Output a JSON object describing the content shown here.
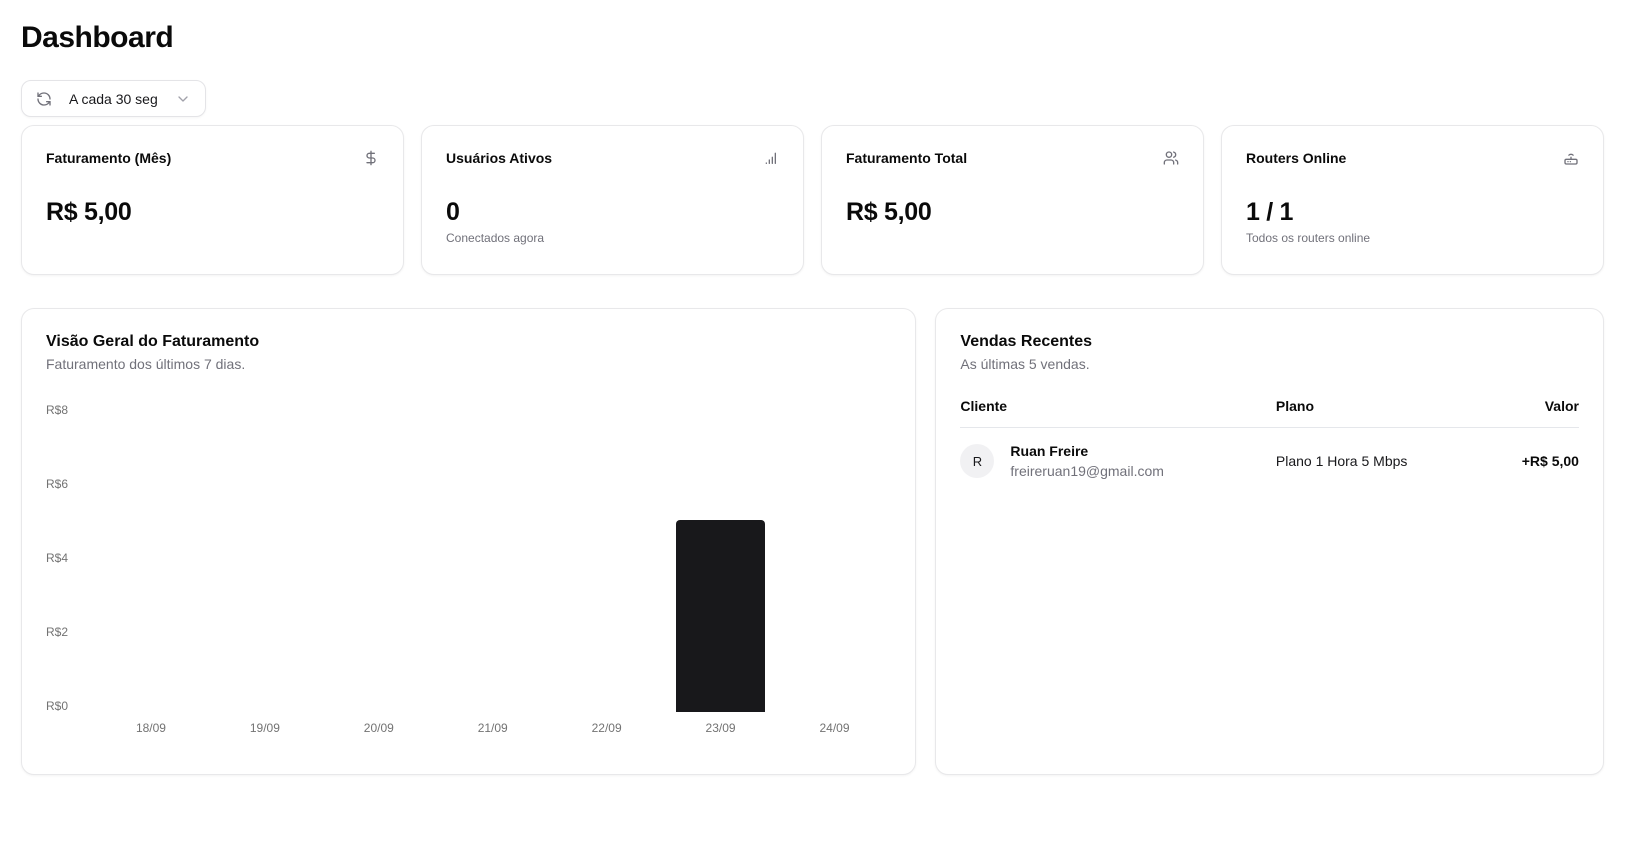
{
  "page": {
    "title": "Dashboard"
  },
  "refresh_control": {
    "label": "A cada 30 seg"
  },
  "stat_cards": [
    {
      "title": "Faturamento (Mês)",
      "icon": "dollar-sign-icon",
      "value": "R$ 5,00",
      "subtitle": ""
    },
    {
      "title": "Usuários Ativos",
      "icon": "bar-chart-icon",
      "value": "0",
      "subtitle": "Conectados agora"
    },
    {
      "title": "Faturamento Total",
      "icon": "users-icon",
      "value": "R$ 5,00",
      "subtitle": ""
    },
    {
      "title": "Routers Online",
      "icon": "router-icon",
      "value": "1 / 1",
      "subtitle": "Todos os routers online"
    }
  ],
  "chart_card": {
    "title": "Visão Geral do Faturamento",
    "subtitle": "Faturamento dos últimos 7 dias."
  },
  "chart_data": {
    "type": "bar",
    "categories": [
      "18/09",
      "19/09",
      "20/09",
      "21/09",
      "22/09",
      "23/09",
      "24/09"
    ],
    "values": [
      0,
      0,
      0,
      0,
      0,
      5,
      0
    ],
    "title": "Visão Geral do Faturamento",
    "xlabel": "",
    "ylabel": "",
    "ylim": [
      0,
      8
    ],
    "ytick_labels": [
      "R$8",
      "R$6",
      "R$4",
      "R$2",
      "R$0"
    ],
    "bar_color": "#18181b",
    "grid": false,
    "legend": false
  },
  "sales_card": {
    "title": "Vendas Recentes",
    "subtitle": "As últimas 5 vendas.",
    "columns": [
      "Cliente",
      "Plano",
      "Valor"
    ],
    "rows": [
      {
        "avatar_initial": "R",
        "name": "Ruan Freire",
        "email": "freireruan19@gmail.com",
        "plan": "Plano 1 Hora 5 Mbps",
        "value": "+R$ 5,00"
      }
    ]
  },
  "colors": {
    "bar": "#18181b",
    "muted_text": "#71717a",
    "border": "#e4e4e7"
  }
}
